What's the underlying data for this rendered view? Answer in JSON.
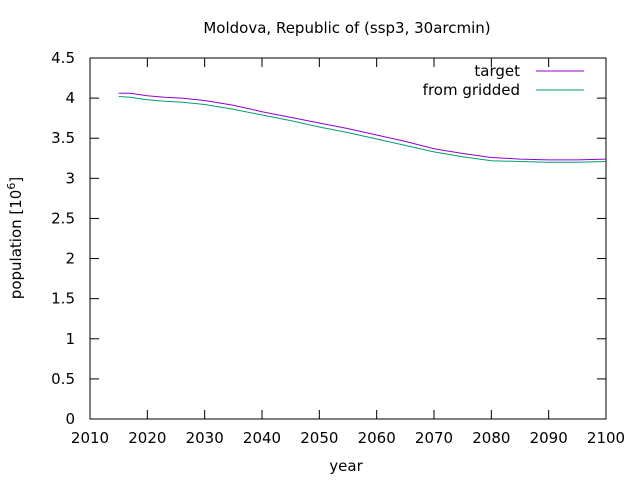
{
  "chart_data": {
    "type": "line",
    "title": "Moldova, Republic of (ssp3, 30arcmin)",
    "xlabel": "year",
    "ylabel_main": "population [10",
    "ylabel_exp": "6",
    "ylabel_close": "]",
    "xlim": [
      2010,
      2100
    ],
    "ylim": [
      0,
      4.5
    ],
    "xticks": [
      2010,
      2020,
      2030,
      2040,
      2050,
      2060,
      2070,
      2080,
      2090,
      2100
    ],
    "yticks": [
      0,
      0.5,
      1,
      1.5,
      2,
      2.5,
      3,
      3.5,
      4,
      4.5
    ],
    "grid": false,
    "legend_position": "top-right",
    "series": [
      {
        "name": "target",
        "color": "#9400d3",
        "x": [
          2015,
          2017,
          2020,
          2023,
          2026,
          2030,
          2035,
          2040,
          2045,
          2050,
          2055,
          2060,
          2065,
          2070,
          2075,
          2080,
          2085,
          2090,
          2095,
          2100
        ],
        "y": [
          4.06,
          4.06,
          4.03,
          4.01,
          4.0,
          3.97,
          3.91,
          3.83,
          3.76,
          3.69,
          3.62,
          3.54,
          3.46,
          3.37,
          3.31,
          3.26,
          3.24,
          3.23,
          3.23,
          3.24
        ]
      },
      {
        "name": "from gridded",
        "color": "#009e73",
        "x": [
          2015,
          2017,
          2020,
          2023,
          2026,
          2030,
          2035,
          2040,
          2045,
          2050,
          2055,
          2060,
          2065,
          2070,
          2075,
          2080,
          2085,
          2090,
          2095,
          2100
        ],
        "y": [
          4.02,
          4.01,
          3.98,
          3.96,
          3.95,
          3.92,
          3.86,
          3.79,
          3.72,
          3.64,
          3.57,
          3.49,
          3.41,
          3.33,
          3.27,
          3.22,
          3.21,
          3.2,
          3.2,
          3.21
        ]
      }
    ]
  }
}
